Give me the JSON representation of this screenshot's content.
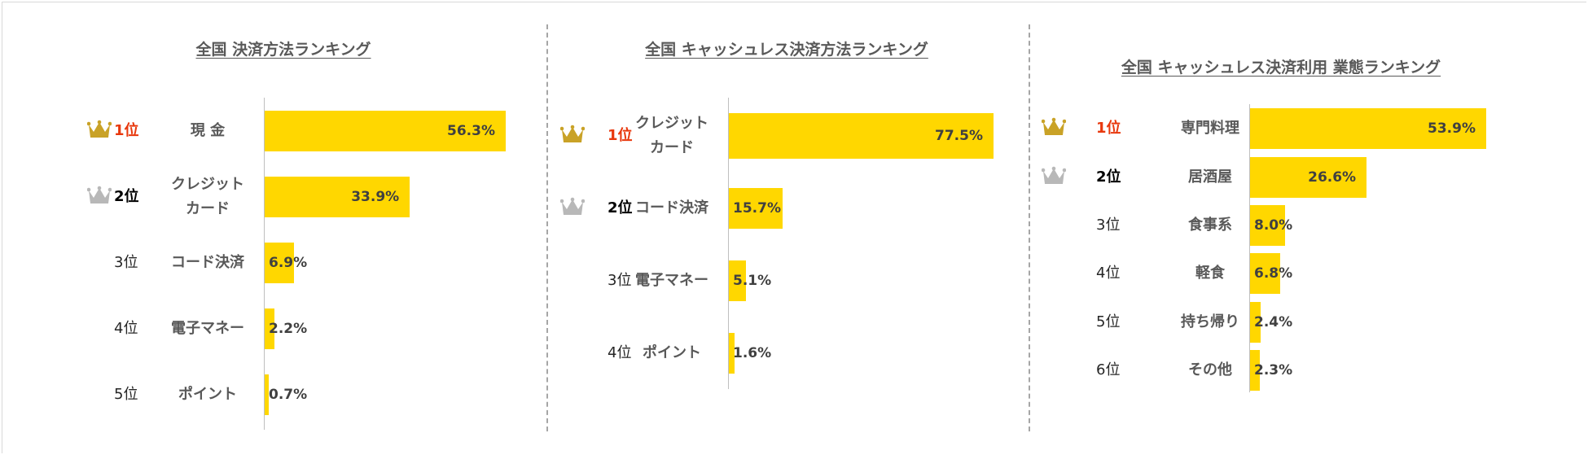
{
  "colors": {
    "bar": "#ffd700",
    "gold_crown": "#c9a227",
    "silver_crown": "#b8b8b8",
    "rank1_text": "#e8380d"
  },
  "chart_data": [
    {
      "type": "bar",
      "orientation": "horizontal",
      "title": "全国 決済方法ランキング",
      "ranks": [
        "1位",
        "2位",
        "3位",
        "4位",
        "5位"
      ],
      "categories": [
        "現 金",
        "クレジット\nカード",
        "コード決済",
        "電子マネー",
        "ポイント"
      ],
      "values": [
        56.3,
        33.9,
        6.9,
        2.2,
        0.7
      ],
      "value_labels": [
        "56.3%",
        "33.9%",
        "6.9%",
        "2.2%",
        "0.7%"
      ],
      "crowns": [
        "gold",
        "silver",
        null,
        null,
        null
      ],
      "xlim": [
        0,
        100
      ],
      "grid": false
    },
    {
      "type": "bar",
      "orientation": "horizontal",
      "title": "全国 キャッシュレス決済方法ランキング",
      "ranks": [
        "1位",
        "2位",
        "3位",
        "4位"
      ],
      "categories": [
        "クレジット\nカード",
        "コード決済",
        "電子マネー",
        "ポイント"
      ],
      "values": [
        77.5,
        15.7,
        5.1,
        1.6
      ],
      "value_labels": [
        "77.5%",
        "15.7%",
        "5.1%",
        "1.6%"
      ],
      "crowns": [
        "gold",
        "silver",
        null,
        null
      ],
      "xlim": [
        0,
        100
      ],
      "grid": false
    },
    {
      "type": "bar",
      "orientation": "horizontal",
      "title": "全国 キャッシュレス決済利用 業態ランキング",
      "ranks": [
        "1位",
        "2位",
        "3位",
        "4位",
        "5位",
        "6位"
      ],
      "categories": [
        "専門料理",
        "居酒屋",
        "食事系",
        "軽食",
        "持ち帰り",
        "その他"
      ],
      "values": [
        53.9,
        26.6,
        8.0,
        6.8,
        2.4,
        2.3
      ],
      "value_labels": [
        "53.9%",
        "26.6%",
        "8.0%",
        "6.8%",
        "2.4%",
        "2.3%"
      ],
      "crowns": [
        "gold",
        "silver",
        null,
        null,
        null,
        null
      ],
      "xlim": [
        0,
        100
      ],
      "grid": false
    }
  ]
}
